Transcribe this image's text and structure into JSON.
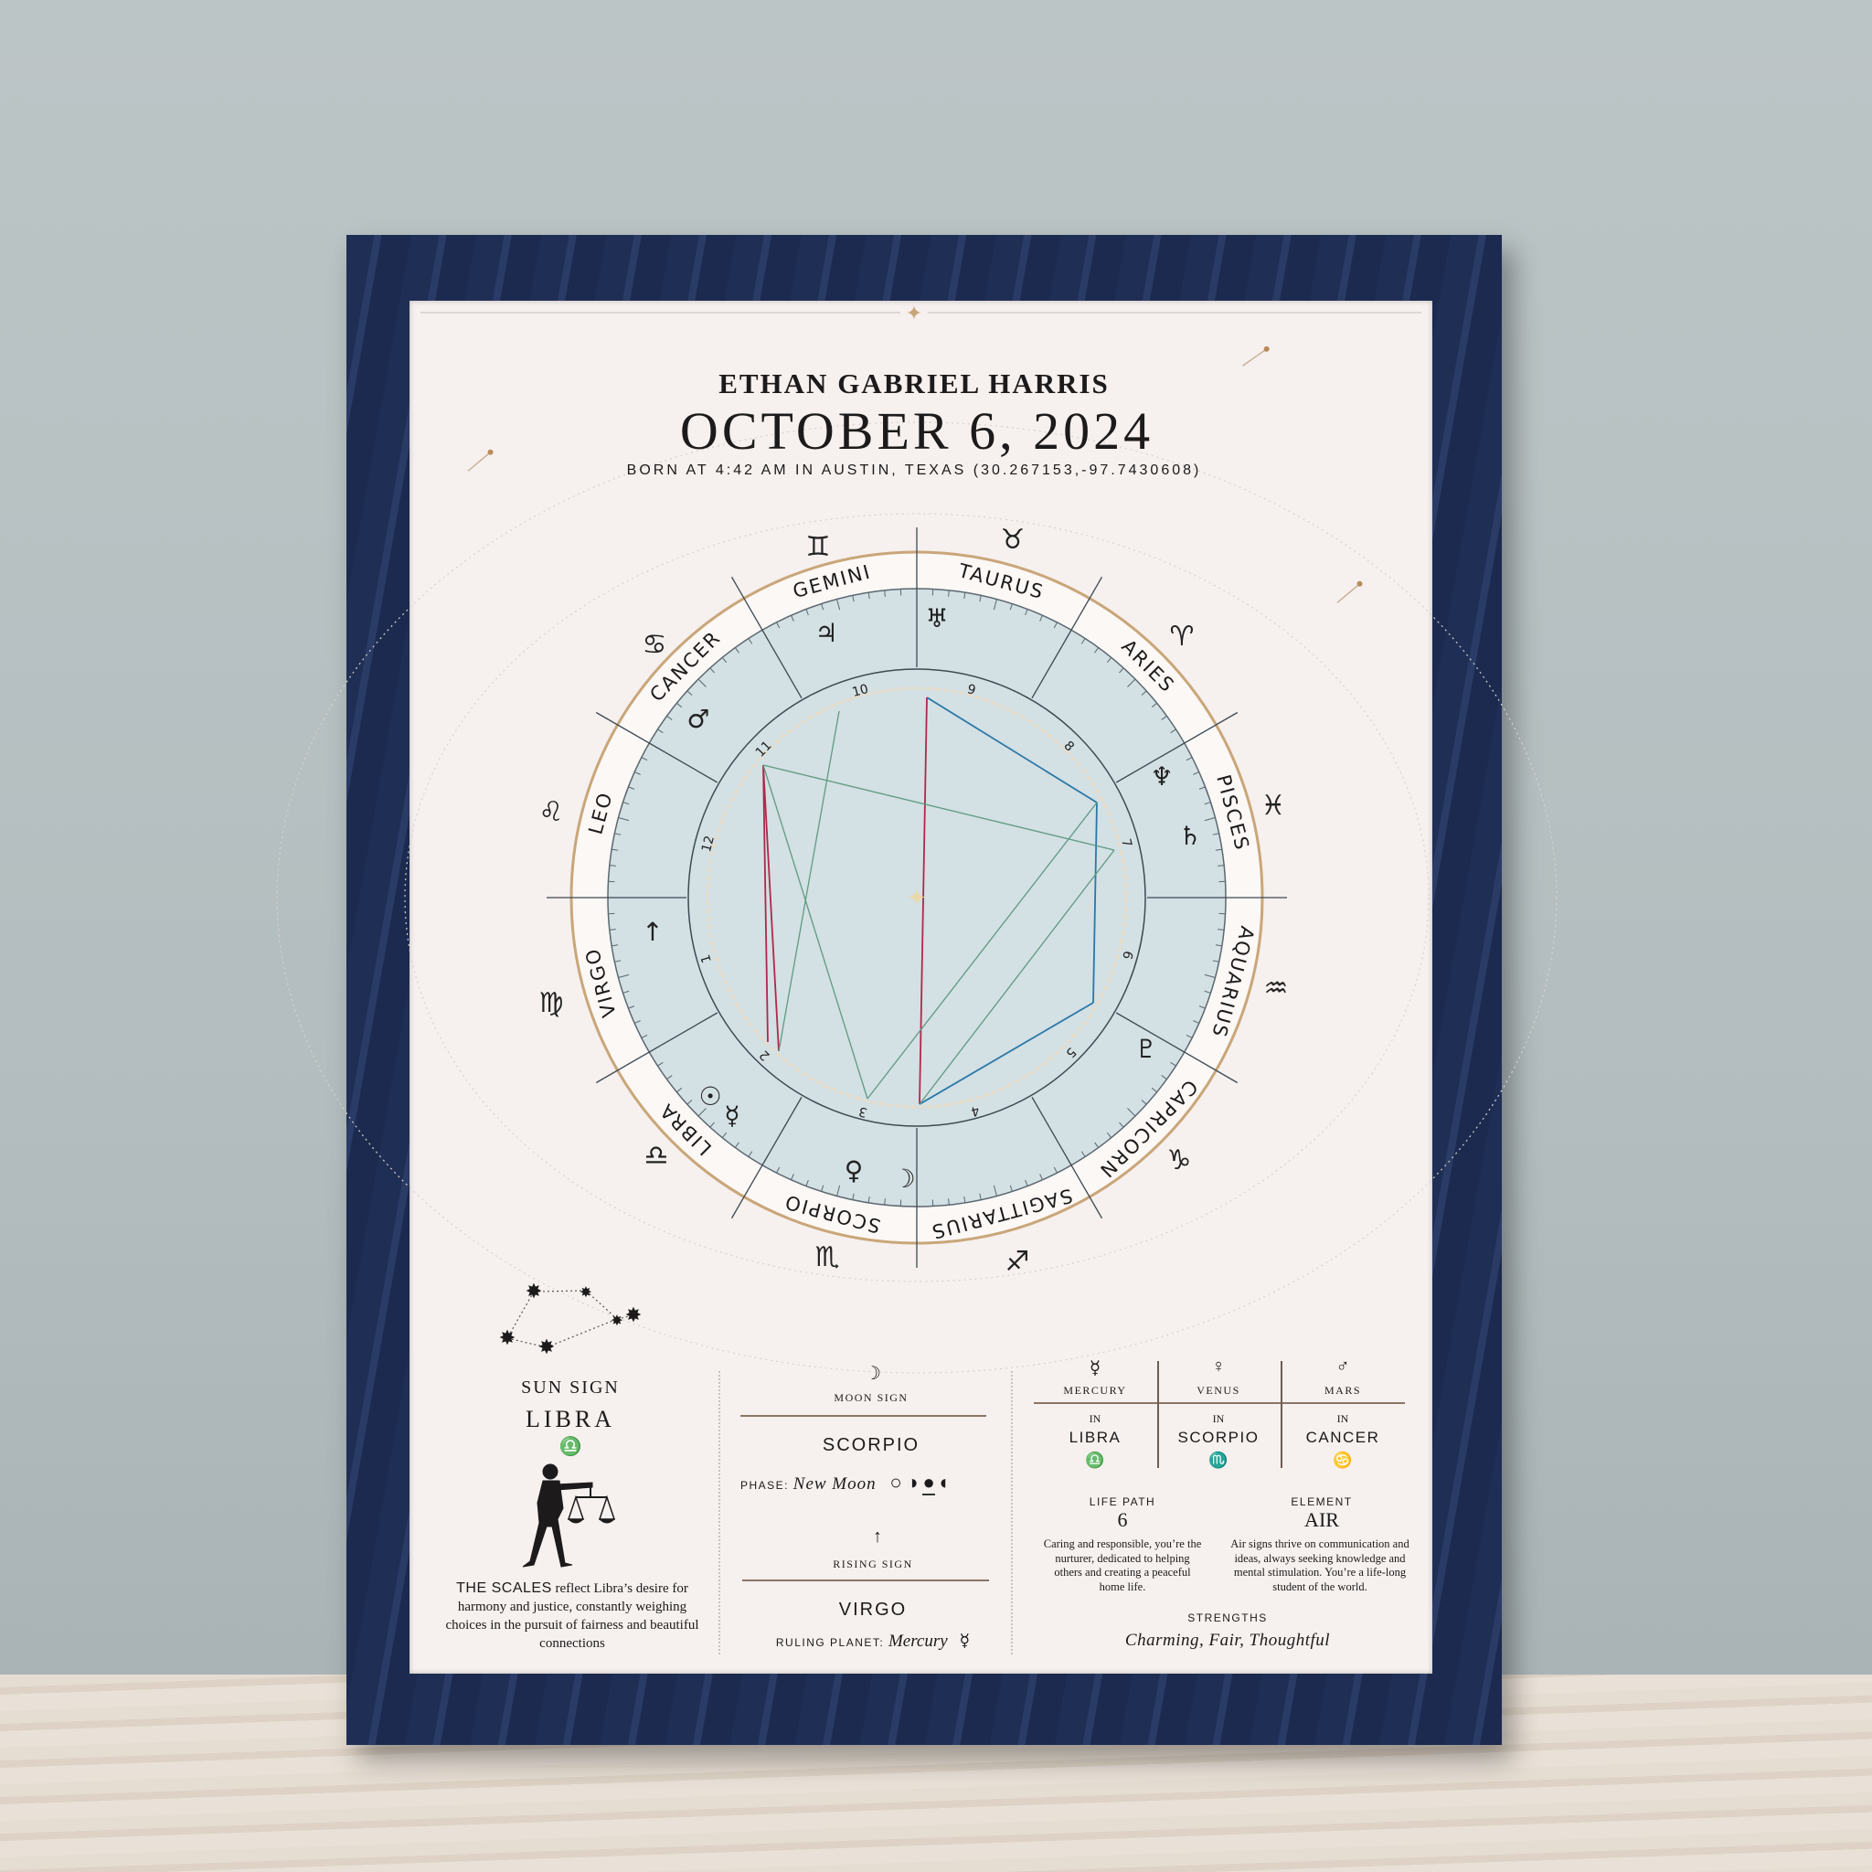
{
  "header": {
    "name": "ETHAN GABRIEL HARRIS",
    "date": "OCTOBER 6, 2024",
    "born": "BORN AT 4:42 AM IN AUSTIN, TEXAS (30.267153,-97.7430608)"
  },
  "wheel": {
    "signs": [
      "ARIES",
      "TAURUS",
      "GEMINI",
      "CANCER",
      "LEO",
      "VIRGO",
      "LIBRA",
      "SCORPIO",
      "SAGITTARIUS",
      "CAPRICORN",
      "AQUARIUS",
      "PISCES"
    ],
    "sign_glyphs": [
      "♊",
      "♉",
      "♈",
      "♓",
      "♒",
      "♑",
      "♐",
      "♏",
      "♎",
      "♍",
      "♌",
      "♋"
    ],
    "houses": [
      "10",
      "9",
      "8",
      "7",
      "6",
      "5",
      "4",
      "3",
      "2",
      "1",
      "12",
      "11"
    ],
    "planets": [
      {
        "name": "jupiter",
        "glyph": "♃"
      },
      {
        "name": "uranus",
        "glyph": "♅"
      },
      {
        "name": "mars",
        "glyph": "♂"
      },
      {
        "name": "neptune",
        "glyph": "♆"
      },
      {
        "name": "saturn",
        "glyph": "♄"
      },
      {
        "name": "ascendant",
        "glyph": "↑"
      },
      {
        "name": "pluto",
        "glyph": "♇"
      },
      {
        "name": "sun",
        "glyph": "☉"
      },
      {
        "name": "mercury",
        "glyph": "☿"
      },
      {
        "name": "venus",
        "glyph": "♀"
      },
      {
        "name": "moon",
        "glyph": "☽"
      }
    ],
    "colors": {
      "disk": "#d3e0e4",
      "gold": "#c9a679",
      "red": "#b0284a",
      "blue": "#2b78a8",
      "green": "#5f9a82"
    }
  },
  "sun": {
    "label": "SUN SIGN",
    "sign": "LIBRA",
    "glyph": "♎",
    "lead": "THE SCALES",
    "text": " reflect Libra’s desire for harmony and justice, constantly weighing choices in the pursuit of fairness and beautiful connections"
  },
  "moon": {
    "glyph": "☽",
    "label": "MOON SIGN",
    "sign": "SCORPIO",
    "phase_label": "PHASE:",
    "phase": "New Moon",
    "phase_icons": [
      "○",
      "◑",
      "●",
      "◐"
    ]
  },
  "rising": {
    "glyph": "↑",
    "label": "RISING SIGN",
    "sign": "VIRGO",
    "ruling_label": "RULING PLANET:",
    "ruling": "Mercury",
    "ruling_glyph": "☿"
  },
  "placements": [
    {
      "glyph": "☿",
      "planet": "MERCURY",
      "in": "IN",
      "sign": "LIBRA",
      "sign_glyph": "♎"
    },
    {
      "glyph": "♀",
      "planet": "VENUS",
      "in": "IN",
      "sign": "SCORPIO",
      "sign_glyph": "♏"
    },
    {
      "glyph": "♂",
      "planet": "MARS",
      "in": "IN",
      "sign": "CANCER",
      "sign_glyph": "♋"
    }
  ],
  "life_path": {
    "label": "LIFE PATH",
    "value": "6",
    "text": "Caring and responsible, you’re the nurturer, dedicated to helping others and creating a peaceful home life."
  },
  "element": {
    "label": "ELEMENT",
    "value": "AIR",
    "text": "Air signs thrive on communication and ideas, always seeking knowledge and mental stimulation. You’re a life-long student of the world."
  },
  "strengths": {
    "label": "STRENGTHS",
    "value": "Charming, Fair, Thoughtful"
  }
}
